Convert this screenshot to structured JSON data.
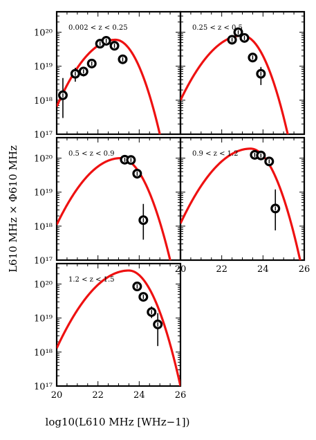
{
  "figure": {
    "xlabel": "log10(L610 MHz [WHz−1])",
    "ylabel": "L610 MHz × Φ610 MHz"
  },
  "chart_data": {
    "type": "scatter",
    "layout": "multi-panel grid, 3 rows × 2 columns, bottom-right empty",
    "xlim": [
      20,
      26
    ],
    "ylim": [
      1e+17,
      4e+20
    ],
    "yscale": "log",
    "x_ticks": [
      20,
      22,
      24,
      26
    ],
    "y_ticks": [
      1e+17,
      1e+18,
      1e+19,
      1e+20
    ],
    "colors": {
      "model_line": "#ee1111",
      "points": "#000000"
    },
    "panels": [
      {
        "label": "0.002 < z < 0.25",
        "points": [
          {
            "x": 20.3,
            "y": 1.4e+18,
            "ylo": 3e+17,
            "yhi": 4.5e+18
          },
          {
            "x": 20.9,
            "y": 6e+18,
            "ylo": 3.5e+18,
            "yhi": 9e+18
          },
          {
            "x": 21.3,
            "y": 7e+18,
            "ylo": 5e+18,
            "yhi": 9.5e+18
          },
          {
            "x": 21.7,
            "y": 1.2e+19,
            "ylo": 9e+18,
            "yhi": 1.5e+19
          },
          {
            "x": 22.1,
            "y": 4.6e+19,
            "ylo": 3.5e+19,
            "yhi": 5.8e+19
          },
          {
            "x": 22.4,
            "y": 5.6e+19,
            "ylo": 4.5e+19,
            "yhi": 7e+19
          },
          {
            "x": 22.8,
            "y": 4e+19,
            "ylo": 3.2e+19,
            "yhi": 5e+19
          },
          {
            "x": 23.2,
            "y": 1.6e+19,
            "ylo": 1.2e+19,
            "yhi": 2.1e+19
          }
        ],
        "model": {
          "peak_x": 22.85,
          "peak_y": 6e+19,
          "lowx_y": 6.5e+17,
          "hix_zero": 25.0
        }
      },
      {
        "label": "0.25 < z < 0.5",
        "points": [
          {
            "x": 22.5,
            "y": 6e+19,
            "ylo": 4.5e+19,
            "yhi": 7.5e+19
          },
          {
            "x": 22.8,
            "y": 1e+20,
            "ylo": 8e+19,
            "yhi": 1.25e+20
          },
          {
            "x": 23.1,
            "y": 6.8e+19,
            "ylo": 5.5e+19,
            "yhi": 8.5e+19
          },
          {
            "x": 23.5,
            "y": 1.8e+19,
            "ylo": 1.3e+19,
            "yhi": 2.4e+19
          },
          {
            "x": 23.9,
            "y": 6e+18,
            "ylo": 2.8e+18,
            "yhi": 9.5e+18
          }
        ],
        "model": {
          "peak_x": 23.0,
          "peak_y": 8e+19,
          "lowx_y": 1e+18,
          "hix_zero": 25.2
        }
      },
      {
        "label": "0.5 < z < 0.9",
        "points": [
          {
            "x": 23.3,
            "y": 9e+19,
            "ylo": 7.5e+19,
            "yhi": 1.1e+20
          },
          {
            "x": 23.6,
            "y": 8.8e+19,
            "ylo": 7e+19,
            "yhi": 1.1e+20
          },
          {
            "x": 23.9,
            "y": 3.5e+19,
            "ylo": 2.5e+19,
            "yhi": 4.5e+19
          },
          {
            "x": 24.2,
            "y": 1.5e+18,
            "ylo": 4e+17,
            "yhi": 4.5e+18
          }
        ],
        "model": {
          "peak_x": 23.1,
          "peak_y": 1e+20,
          "lowx_y": 1.1e+18,
          "hix_zero": 25.5
        }
      },
      {
        "label": "0.9 < z < 1.2",
        "points": [
          {
            "x": 23.6,
            "y": 1.25e+20,
            "ylo": 1e+20,
            "yhi": 1.55e+20
          },
          {
            "x": 23.9,
            "y": 1.2e+20,
            "ylo": 9.5e+19,
            "yhi": 1.5e+20
          },
          {
            "x": 24.3,
            "y": 8e+19,
            "ylo": 6.3e+19,
            "yhi": 1e+20
          },
          {
            "x": 24.6,
            "y": 3.3e+18,
            "ylo": 7.5e+17,
            "yhi": 1.2e+19
          }
        ],
        "model": {
          "peak_x": 23.4,
          "peak_y": 1.9e+20,
          "lowx_y": 1.2e+18,
          "hix_zero": 25.8
        }
      },
      {
        "label": "1.2 < z < 1.5",
        "points": [
          {
            "x": 23.9,
            "y": 8.5e+19,
            "ylo": 6.5e+19,
            "yhi": 1.1e+20
          },
          {
            "x": 24.2,
            "y": 4.2e+19,
            "ylo": 3.2e+19,
            "yhi": 5.5e+19
          },
          {
            "x": 24.6,
            "y": 1.5e+19,
            "ylo": 1e+19,
            "yhi": 2.2e+19
          },
          {
            "x": 24.9,
            "y": 6.5e+18,
            "ylo": 1.5e+18,
            "yhi": 1.4e+19
          }
        ],
        "model": {
          "peak_x": 23.5,
          "peak_y": 2.5e+20,
          "lowx_y": 1.3e+18,
          "hix_zero": 26.0
        }
      }
    ]
  }
}
